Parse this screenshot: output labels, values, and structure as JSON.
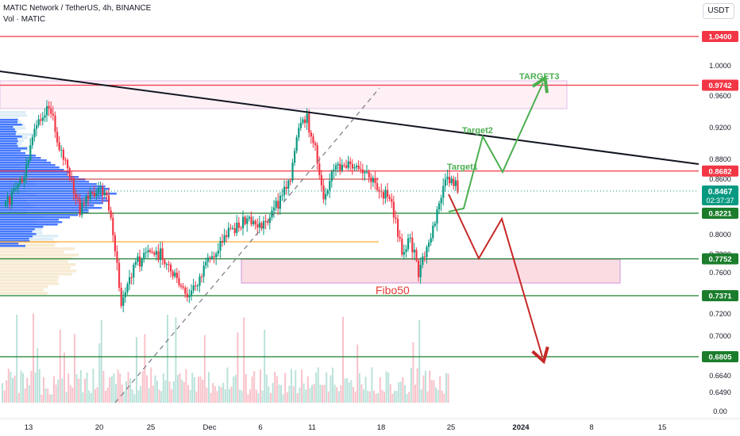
{
  "header": {
    "symbol_line": "MATIC Network / TetherUS, 4h, BINANCE",
    "volume_label": "Vol · MATIC",
    "currency_button": "USDT"
  },
  "price_axis": {
    "ticks": [
      {
        "label": "1.0000",
        "value": 1.0
      },
      {
        "label": "0.9600",
        "value": 0.96
      },
      {
        "label": "0.9200",
        "value": 0.92
      },
      {
        "label": "0.8800",
        "value": 0.88
      },
      {
        "label": "0.8600",
        "value": 0.86
      },
      {
        "label": "0.8000",
        "value": 0.8
      },
      {
        "label": "0.7800",
        "value": 0.78
      },
      {
        "label": "0.7600",
        "value": 0.76
      },
      {
        "label": "0.7200",
        "value": 0.72
      },
      {
        "label": "0.7000",
        "value": 0.7
      },
      {
        "label": "0.6640",
        "value": 0.664
      },
      {
        "label": "0.6490",
        "value": 0.649
      },
      {
        "label": "0.00",
        "value": 0.0
      }
    ]
  },
  "price_levels": [
    {
      "label": "1.0400",
      "value": 1.04,
      "color": "#f23645"
    },
    {
      "label": "0.9742",
      "value": 0.9742,
      "color": "#f23645"
    },
    {
      "label": "0.8682",
      "value": 0.8682,
      "color": "#f23645"
    },
    {
      "label": "0.8221",
      "value": 0.8221,
      "color": "#1b7d2c"
    },
    {
      "label": "0.7752",
      "value": 0.7752,
      "color": "#1b7d2c"
    },
    {
      "label": "0.7371",
      "value": 0.7371,
      "color": "#1b7d2c"
    },
    {
      "label": "0.6805",
      "value": 0.6805,
      "color": "#1b7d2c"
    }
  ],
  "current_price": {
    "value": 0.8467,
    "label": "0.8467",
    "countdown": "02:37:37",
    "color": "#089981"
  },
  "time_axis": {
    "ticks": [
      "13",
      "20",
      "25",
      "Dec",
      "6",
      "11",
      "18",
      "25",
      "2024",
      "8",
      "15"
    ]
  },
  "annotations": {
    "target1": "Target1",
    "target2": "Target2",
    "target3": "TARGET3",
    "fibo": "Fibo50"
  },
  "colors": {
    "up": "#089981",
    "down": "#f23645",
    "bullish_path": "#4caf50",
    "bearish_path": "#c62828",
    "trendline": "#131722",
    "volume_profile": "#2962ff"
  }
}
